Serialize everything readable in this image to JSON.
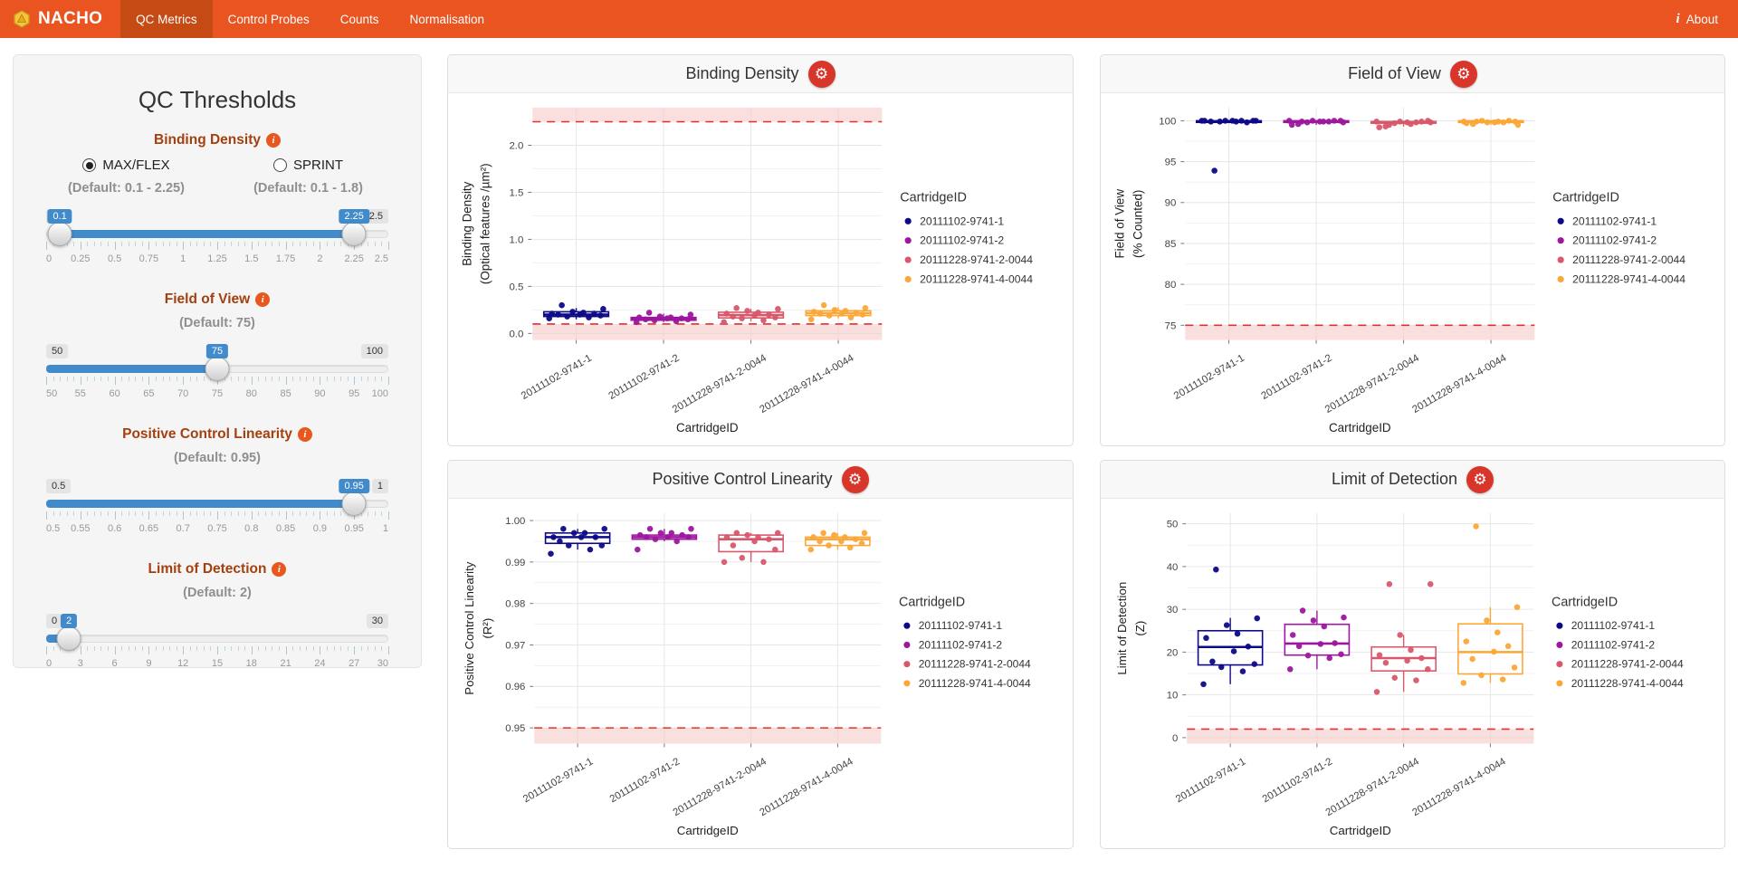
{
  "icons": {
    "gear": "⚙",
    "info": "i",
    "about_info": "i"
  },
  "colors": {
    "navbar_orange": "#E95420",
    "navbar_active": "#C64A14",
    "slider_blue": "#428BCA",
    "gear_red": "#D8362A",
    "threshold_red": "#E0302F",
    "threshold_band": "#F6C9C9"
  },
  "navbar": {
    "brand": "NACHO",
    "tabs": [
      {
        "label": "QC Metrics",
        "active": true
      },
      {
        "label": "Control Probes",
        "active": false
      },
      {
        "label": "Counts",
        "active": false
      },
      {
        "label": "Normalisation",
        "active": false
      }
    ],
    "about_label": "About"
  },
  "sidebar": {
    "title": "QC Thresholds",
    "binding_density": {
      "label": "Binding Density",
      "options": [
        {
          "label": "MAX/FLEX",
          "default": "(Default: 0.1 - 2.25)",
          "selected": true
        },
        {
          "label": "SPRINT",
          "default": "(Default: 0.1 - 1.8)",
          "selected": false
        }
      ],
      "slider": {
        "min": 0,
        "max": 2.5,
        "from": 0.1,
        "to": 2.25,
        "min_label": "0",
        "max_label": "2.5",
        "from_label": "0.1",
        "to_label": "2.25",
        "ticks": [
          "0",
          "0.25",
          "0.5",
          "0.75",
          "1",
          "1.25",
          "1.5",
          "1.75",
          "2",
          "2.25",
          "2.5"
        ]
      }
    },
    "field_of_view": {
      "label": "Field of View",
      "default": "(Default: 75)",
      "slider": {
        "min": 50,
        "max": 100,
        "value": 75,
        "min_label": "50",
        "max_label": "100",
        "value_label": "75",
        "ticks": [
          "50",
          "55",
          "60",
          "65",
          "70",
          "75",
          "80",
          "85",
          "90",
          "95",
          "100"
        ]
      }
    },
    "positive_control_linearity": {
      "label": "Positive Control Linearity",
      "default": "(Default: 0.95)",
      "slider": {
        "min": 0.5,
        "max": 1,
        "value": 0.95,
        "min_label": "0.5",
        "max_label": "1",
        "value_label": "0.95",
        "ticks": [
          "0.5",
          "0.55",
          "0.6",
          "0.65",
          "0.7",
          "0.75",
          "0.8",
          "0.85",
          "0.9",
          "0.95",
          "1"
        ]
      }
    },
    "limit_of_detection": {
      "label": "Limit of Detection",
      "default": "(Default: 2)",
      "slider": {
        "min": 0,
        "max": 30,
        "value": 2,
        "min_label": "0",
        "max_label": "30",
        "value_label": "2",
        "ticks": [
          "0",
          "3",
          "6",
          "9",
          "12",
          "15",
          "18",
          "21",
          "24",
          "27",
          "30"
        ]
      }
    }
  },
  "chart_data": [
    {
      "type": "boxplot",
      "title": "Binding Density",
      "ylabel": [
        "Binding Density",
        "(Optical features /µm²)"
      ],
      "xlabel": "CartridgeID",
      "legend_title": "CartridgeID",
      "ylim": [
        -0.07,
        2.4
      ],
      "yticks": [
        0,
        0.5,
        1,
        1.5,
        2
      ],
      "ytick_labels": [
        "0.0",
        "0.5",
        "1.0",
        "1.5",
        "2.0"
      ],
      "thresholds": [
        {
          "value": 0.1,
          "band": [
            -0.07,
            0.1
          ]
        },
        {
          "value": 2.25,
          "band": [
            2.25,
            2.4
          ]
        }
      ],
      "categories": [
        "20111102-9741-1",
        "20111102-9741-2",
        "20111228-9741-2-0044",
        "20111228-9741-4-0044"
      ],
      "colors": [
        "#0D0887",
        "#9C179E",
        "#D8576B",
        "#FCA636"
      ],
      "series": [
        {
          "name": "20111102-9741-1",
          "box": {
            "low": 0.15,
            "q1": 0.18,
            "median": 0.2,
            "q3": 0.23,
            "high": 0.27
          },
          "points": [
            0.16,
            0.17,
            0.18,
            0.19,
            0.2,
            0.2,
            0.21,
            0.21,
            0.22,
            0.23,
            0.26,
            0.3
          ]
        },
        {
          "name": "20111102-9741-2",
          "box": {
            "low": 0.12,
            "q1": 0.14,
            "median": 0.155,
            "q3": 0.17,
            "high": 0.21
          },
          "points": [
            0.12,
            0.13,
            0.14,
            0.15,
            0.15,
            0.16,
            0.16,
            0.17,
            0.17,
            0.18,
            0.2,
            0.22
          ]
        },
        {
          "name": "20111228-9741-2-0044",
          "box": {
            "low": 0.13,
            "q1": 0.165,
            "median": 0.195,
            "q3": 0.225,
            "high": 0.26
          },
          "points": [
            0.12,
            0.14,
            0.16,
            0.17,
            0.18,
            0.19,
            0.2,
            0.21,
            0.22,
            0.24,
            0.26,
            0.27
          ]
        },
        {
          "name": "20111228-9741-4-0044",
          "box": {
            "low": 0.16,
            "q1": 0.19,
            "median": 0.215,
            "q3": 0.24,
            "high": 0.28
          },
          "points": [
            0.15,
            0.17,
            0.19,
            0.2,
            0.21,
            0.21,
            0.22,
            0.23,
            0.24,
            0.25,
            0.27,
            0.3
          ]
        }
      ]
    },
    {
      "type": "boxplot",
      "title": "Field of View",
      "ylabel": [
        "Field of View",
        "(% Counted)"
      ],
      "xlabel": "CartridgeID",
      "legend_title": "CartridgeID",
      "ylim": [
        73.2,
        101.6
      ],
      "yticks": [
        75,
        80,
        85,
        90,
        95,
        100
      ],
      "ytick_labels": [
        "75",
        "80",
        "85",
        "90",
        "95",
        "100"
      ],
      "thresholds": [
        {
          "value": 75,
          "band": [
            73.2,
            75
          ]
        }
      ],
      "categories": [
        "20111102-9741-1",
        "20111102-9741-2",
        "20111228-9741-2-0044",
        "20111228-9741-4-0044"
      ],
      "colors": [
        "#0D0887",
        "#9C179E",
        "#D8576B",
        "#FCA636"
      ],
      "series": [
        {
          "name": "20111102-9741-1",
          "box": {
            "low": 99.7,
            "q1": 99.8,
            "median": 99.9,
            "q3": 100.0,
            "high": 100.1
          },
          "points": [
            100,
            100,
            99.9,
            100,
            99.9,
            100,
            99.8,
            100,
            99.9,
            100,
            100,
            93.9
          ]
        },
        {
          "name": "20111102-9741-2",
          "box": {
            "low": 99.5,
            "q1": 99.8,
            "median": 99.9,
            "q3": 100.0,
            "high": 100.0
          },
          "points": [
            100,
            99.9,
            99.8,
            100,
            99.6,
            99.9,
            100,
            99.5,
            99.9,
            100,
            99.8,
            99.9
          ]
        },
        {
          "name": "20111228-9741-2-0044",
          "box": {
            "low": 99.3,
            "q1": 99.7,
            "median": 99.8,
            "q3": 99.9,
            "high": 100.0
          },
          "points": [
            99.9,
            99.8,
            99.7,
            100,
            99.3,
            99.8,
            99.9,
            99.2,
            99.6,
            99.9,
            99.8,
            99.5
          ]
        },
        {
          "name": "20111228-9741-4-0044",
          "box": {
            "low": 99.5,
            "q1": 99.8,
            "median": 99.9,
            "q3": 100.0,
            "high": 100.0
          },
          "points": [
            99.9,
            99.8,
            100,
            99.9,
            99.6,
            99.8,
            100,
            99.7,
            99.9,
            99.8,
            99.5,
            99.9
          ]
        }
      ]
    },
    {
      "type": "boxplot",
      "title": "Positive Control Linearity",
      "ylabel": [
        "Positive Control Linearity",
        "(R²)"
      ],
      "xlabel": "CartridgeID",
      "legend_title": "CartridgeID",
      "ylim": [
        0.9462,
        1.0018
      ],
      "yticks": [
        0.95,
        0.96,
        0.97,
        0.98,
        0.99,
        1.0
      ],
      "ytick_labels": [
        "0.95",
        "0.96",
        "0.97",
        "0.98",
        "0.99",
        "1.00"
      ],
      "thresholds": [
        {
          "value": 0.95,
          "band": [
            0.9462,
            0.95
          ]
        }
      ],
      "categories": [
        "20111102-9741-1",
        "20111102-9741-2",
        "20111228-9741-2-0044",
        "20111228-9741-4-0044"
      ],
      "colors": [
        "#0D0887",
        "#9C179E",
        "#D8576B",
        "#FCA636"
      ],
      "series": [
        {
          "name": "20111102-9741-1",
          "box": {
            "low": 0.993,
            "q1": 0.9945,
            "median": 0.996,
            "q3": 0.997,
            "high": 0.998
          },
          "points": [
            0.992,
            0.993,
            0.994,
            0.994,
            0.995,
            0.996,
            0.996,
            0.996,
            0.997,
            0.997,
            0.998,
            0.998
          ]
        },
        {
          "name": "20111102-9741-2",
          "box": {
            "low": 0.995,
            "q1": 0.9955,
            "median": 0.996,
            "q3": 0.9965,
            "high": 0.998
          },
          "points": [
            0.993,
            0.995,
            0.9955,
            0.996,
            0.996,
            0.996,
            0.9965,
            0.9965,
            0.997,
            0.997,
            0.998,
            0.998
          ]
        },
        {
          "name": "20111228-9741-2-0044",
          "box": {
            "low": 0.99,
            "q1": 0.9925,
            "median": 0.9955,
            "q3": 0.9965,
            "high": 0.997
          },
          "points": [
            0.99,
            0.99,
            0.991,
            0.993,
            0.994,
            0.995,
            0.9955,
            0.996,
            0.996,
            0.9965,
            0.997,
            0.997
          ]
        },
        {
          "name": "20111228-9741-4-0044",
          "box": {
            "low": 0.993,
            "q1": 0.994,
            "median": 0.9955,
            "q3": 0.996,
            "high": 0.997
          },
          "points": [
            0.993,
            0.9935,
            0.994,
            0.9945,
            0.995,
            0.995,
            0.9955,
            0.996,
            0.996,
            0.9965,
            0.997,
            0.997
          ]
        }
      ]
    },
    {
      "type": "boxplot",
      "title": "Limit of Detection",
      "ylabel": [
        "Limit of Detection",
        "(Z)"
      ],
      "xlabel": "CartridgeID",
      "legend_title": "CartridgeID",
      "ylim": [
        -1.4,
        52.5
      ],
      "yticks": [
        0,
        10,
        20,
        30,
        40,
        50
      ],
      "ytick_labels": [
        "0",
        "10",
        "20",
        "30",
        "40",
        "50"
      ],
      "thresholds": [
        {
          "value": 2,
          "band": [
            -1.4,
            2
          ]
        }
      ],
      "categories": [
        "20111102-9741-1",
        "20111102-9741-2",
        "20111228-9741-2-0044",
        "20111228-9741-4-0044"
      ],
      "colors": [
        "#0D0887",
        "#9C179E",
        "#D8576B",
        "#FCA636"
      ],
      "series": [
        {
          "name": "20111102-9741-1",
          "box": {
            "low": 12.5,
            "q1": 17.0,
            "median": 21.2,
            "q3": 25.0,
            "high": 28.0
          },
          "points": [
            12.5,
            15.5,
            16.5,
            17.2,
            17.8,
            20.2,
            21.3,
            23.3,
            24.3,
            26.3,
            27.9,
            39.3
          ]
        },
        {
          "name": "20111102-9741-2",
          "box": {
            "low": 16.0,
            "q1": 19.3,
            "median": 22.0,
            "q3": 26.5,
            "high": 29.7
          },
          "points": [
            16.0,
            18.6,
            19.2,
            19.5,
            21.4,
            21.9,
            22.1,
            24.0,
            26.0,
            27.4,
            28.1,
            29.7
          ]
        },
        {
          "name": "20111228-9741-2-0044",
          "box": {
            "low": 10.7,
            "q1": 15.6,
            "median": 18.6,
            "q3": 21.2,
            "high": 24.0
          },
          "points": [
            10.7,
            13.4,
            14.0,
            16.0,
            17.5,
            18.0,
            18.6,
            19.3,
            20.5,
            24.0,
            35.9,
            35.9
          ]
        },
        {
          "name": "20111228-9741-4-0044",
          "box": {
            "low": 12.8,
            "q1": 14.9,
            "median": 20.0,
            "q3": 26.6,
            "high": 30.5
          },
          "points": [
            12.8,
            13.6,
            14.6,
            16.4,
            18.4,
            20.1,
            21.4,
            22.5,
            24.6,
            27.4,
            30.5,
            49.4
          ]
        }
      ]
    }
  ]
}
